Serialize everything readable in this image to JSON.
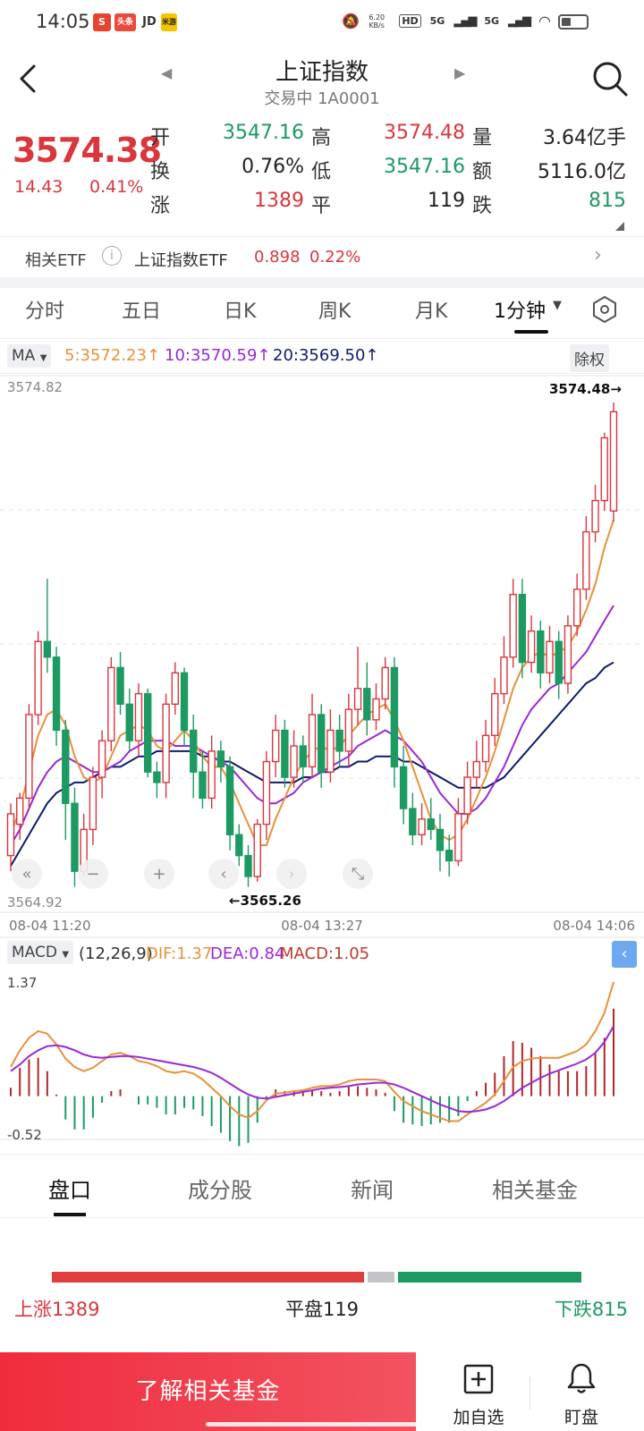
{
  "status_bar": {
    "time": "14:05",
    "app_icons": [
      "S",
      "头条",
      "JD",
      "米游"
    ],
    "net_speed": "6.20 KB/s",
    "signal_labels": [
      "HD",
      "5G",
      "5G"
    ]
  },
  "header": {
    "title": "上证指数",
    "subtitle": "交易中 1A0001"
  },
  "quote": {
    "price": "3574.38",
    "change": "14.43",
    "change_pct": "0.41%",
    "stats": [
      {
        "label": "开",
        "value": "3547.16",
        "tone": "green"
      },
      {
        "label": "高",
        "value": "3574.48",
        "tone": "red"
      },
      {
        "label": "量",
        "value": "3.64亿手",
        "tone": "dark"
      },
      {
        "label": "换",
        "value": "0.76%",
        "tone": "dark"
      },
      {
        "label": "低",
        "value": "3547.16",
        "tone": "green"
      },
      {
        "label": "额",
        "value": "5116.0亿",
        "tone": "dark"
      },
      {
        "label": "涨",
        "value": "1389",
        "tone": "red"
      },
      {
        "label": "平",
        "value": "119",
        "tone": "dark"
      },
      {
        "label": "跌",
        "value": "815",
        "tone": "green"
      }
    ]
  },
  "etf": {
    "label": "相关ETF",
    "name": "上证指数ETF",
    "price": "0.898",
    "pct": "0.22%"
  },
  "period_tabs": [
    "分时",
    "五日",
    "日K",
    "周K",
    "月K",
    "1分钟"
  ],
  "active_period": "1分钟",
  "ma": {
    "selector": "MA",
    "ma5": "5:3572.23",
    "ma10": "10:3570.59",
    "ma20": "20:3569.50",
    "adjust": "除权",
    "colors": {
      "ma5": "#e8913a",
      "ma10": "#9b27d6",
      "ma20": "#0e1a6e"
    }
  },
  "chart_data": {
    "type": "candlestick",
    "y_top_label": "3574.82",
    "y_bottom_label": "3564.92",
    "high_marker": "3574.48→",
    "low_marker": "←3565.26",
    "ylim": [
      3564.92,
      3574.82
    ],
    "x_ticks": [
      "08-04 11:20",
      "08-04 13:27",
      "08-04 14:06"
    ],
    "candles": [
      [
        3565.8,
        3566.6,
        3565.5,
        3566.8
      ],
      [
        3566.4,
        3566.9,
        3566.1,
        3567.0
      ],
      [
        3566.9,
        3568.5,
        3566.7,
        3568.7
      ],
      [
        3568.5,
        3569.9,
        3568.3,
        3570.1
      ],
      [
        3569.9,
        3569.6,
        3569.3,
        3571.1
      ],
      [
        3569.6,
        3568.2,
        3567.9,
        3569.8
      ],
      [
        3568.2,
        3566.8,
        3566.1,
        3568.4
      ],
      [
        3566.8,
        3565.5,
        3565.2,
        3567.1
      ],
      [
        3565.5,
        3566.3,
        3565.4,
        3566.6
      ],
      [
        3566.3,
        3567.3,
        3566.0,
        3567.5
      ],
      [
        3567.3,
        3568.0,
        3566.9,
        3568.2
      ],
      [
        3568.0,
        3569.4,
        3567.8,
        3569.6
      ],
      [
        3569.4,
        3568.7,
        3568.5,
        3569.7
      ],
      [
        3568.7,
        3568.0,
        3567.8,
        3569.0
      ],
      [
        3568.0,
        3568.9,
        3567.7,
        3569.1
      ],
      [
        3568.9,
        3567.4,
        3567.3,
        3569.0
      ],
      [
        3567.4,
        3567.2,
        3566.9,
        3567.6
      ],
      [
        3567.2,
        3568.7,
        3566.9,
        3568.9
      ],
      [
        3568.7,
        3569.3,
        3568.5,
        3569.5
      ],
      [
        3569.3,
        3568.2,
        3567.9,
        3569.4
      ],
      [
        3568.2,
        3567.4,
        3566.9,
        3568.5
      ],
      [
        3567.4,
        3566.9,
        3566.7,
        3567.8
      ],
      [
        3566.9,
        3567.8,
        3566.7,
        3568.1
      ],
      [
        3567.8,
        3567.5,
        3567.2,
        3568.0
      ],
      [
        3567.5,
        3566.2,
        3565.9,
        3567.7
      ],
      [
        3566.2,
        3565.8,
        3565.6,
        3566.4
      ],
      [
        3565.8,
        3565.4,
        3565.2,
        3566.0
      ],
      [
        3565.4,
        3566.4,
        3565.3,
        3566.5
      ],
      [
        3566.4,
        3567.6,
        3566.1,
        3567.8
      ],
      [
        3567.6,
        3568.2,
        3567.3,
        3568.5
      ],
      [
        3568.2,
        3567.3,
        3567.1,
        3568.4
      ],
      [
        3567.3,
        3567.9,
        3567.1,
        3568.2
      ],
      [
        3567.9,
        3567.5,
        3567.2,
        3568.1
      ],
      [
        3567.5,
        3568.5,
        3567.3,
        3568.9
      ],
      [
        3568.5,
        3567.4,
        3567.1,
        3568.7
      ],
      [
        3567.4,
        3568.2,
        3567.2,
        3568.6
      ],
      [
        3568.2,
        3567.8,
        3567.5,
        3568.5
      ],
      [
        3567.8,
        3568.6,
        3567.5,
        3568.9
      ],
      [
        3568.6,
        3569.0,
        3568.3,
        3569.8
      ],
      [
        3569.0,
        3568.4,
        3568.1,
        3569.5
      ],
      [
        3568.4,
        3568.8,
        3568.2,
        3569.1
      ],
      [
        3568.8,
        3569.4,
        3568.6,
        3569.6
      ],
      [
        3569.4,
        3567.5,
        3567.1,
        3569.6
      ],
      [
        3567.5,
        3566.7,
        3566.4,
        3567.9
      ],
      [
        3566.7,
        3566.2,
        3566.0,
        3567.0
      ],
      [
        3566.2,
        3566.5,
        3566.0,
        3566.8
      ],
      [
        3566.5,
        3566.3,
        3566.1,
        3566.9
      ],
      [
        3566.3,
        3565.9,
        3565.5,
        3566.6
      ],
      [
        3565.9,
        3565.7,
        3565.4,
        3566.2
      ],
      [
        3565.7,
        3566.6,
        3565.6,
        3566.9
      ],
      [
        3566.6,
        3567.3,
        3566.4,
        3567.6
      ],
      [
        3567.3,
        3567.6,
        3567.1,
        3568.0
      ],
      [
        3567.6,
        3568.1,
        3567.4,
        3568.4
      ],
      [
        3568.1,
        3568.9,
        3567.9,
        3569.2
      ],
      [
        3568.9,
        3569.6,
        3568.7,
        3570.0
      ],
      [
        3569.6,
        3570.8,
        3569.4,
        3571.1
      ],
      [
        3570.8,
        3569.5,
        3569.2,
        3571.1
      ],
      [
        3569.5,
        3570.1,
        3569.3,
        3570.4
      ],
      [
        3570.1,
        3569.3,
        3569.0,
        3570.3
      ],
      [
        3569.3,
        3569.9,
        3569.1,
        3570.2
      ],
      [
        3569.9,
        3569.1,
        3568.8,
        3570.1
      ],
      [
        3569.1,
        3570.2,
        3568.9,
        3570.4
      ],
      [
        3570.2,
        3570.9,
        3570.0,
        3571.2
      ],
      [
        3570.9,
        3572.0,
        3570.7,
        3572.3
      ],
      [
        3572.0,
        3572.6,
        3571.8,
        3572.9
      ],
      [
        3572.6,
        3573.8,
        3572.4,
        3573.9
      ],
      [
        3572.4,
        3574.3,
        3572.2,
        3574.48
      ]
    ],
    "ma5": [
      3566.2,
      3566.7,
      3567.4,
      3568.1,
      3568.5,
      3568.6,
      3568.3,
      3567.7,
      3567.3,
      3567.2,
      3567.3,
      3567.7,
      3568.1,
      3568.2,
      3568.3,
      3568.2,
      3567.9,
      3567.8,
      3568.0,
      3568.2,
      3568.0,
      3567.7,
      3567.5,
      3567.5,
      3567.2,
      3566.8,
      3566.4,
      3566.0,
      3566.0,
      3566.5,
      3566.9,
      3567.3,
      3567.6,
      3567.8,
      3567.9,
      3567.8,
      3567.9,
      3568.1,
      3568.3,
      3568.5,
      3568.6,
      3568.7,
      3568.4,
      3568.0,
      3567.5,
      3567.0,
      3566.5,
      3566.2,
      3566.1,
      3566.2,
      3566.5,
      3566.9,
      3567.3,
      3567.8,
      3568.4,
      3569.0,
      3569.4,
      3569.6,
      3569.7,
      3569.6,
      3569.7,
      3569.8,
      3570.1,
      3570.5,
      3571.0,
      3571.7,
      3572.23
    ],
    "ma10": [
      3566.0,
      3566.3,
      3566.7,
      3567.1,
      3567.4,
      3567.6,
      3567.7,
      3567.6,
      3567.5,
      3567.4,
      3567.4,
      3567.5,
      3567.6,
      3567.8,
      3567.9,
      3568.0,
      3568.0,
      3568.0,
      3567.9,
      3567.9,
      3567.9,
      3567.8,
      3567.7,
      3567.6,
      3567.5,
      3567.3,
      3567.1,
      3566.9,
      3566.8,
      3566.8,
      3566.9,
      3567.0,
      3567.2,
      3567.3,
      3567.4,
      3567.5,
      3567.6,
      3567.7,
      3567.9,
      3568.0,
      3568.1,
      3568.2,
      3568.1,
      3568.0,
      3567.8,
      3567.6,
      3567.3,
      3567.0,
      3566.8,
      3566.6,
      3566.6,
      3566.7,
      3566.9,
      3567.2,
      3567.5,
      3567.9,
      3568.3,
      3568.6,
      3568.8,
      3569.0,
      3569.1,
      3569.3,
      3569.5,
      3569.7,
      3570.0,
      3570.3,
      3570.59
    ],
    "ma20": [
      3565.6,
      3565.9,
      3566.2,
      3566.5,
      3566.8,
      3567.0,
      3567.1,
      3567.2,
      3567.2,
      3567.3,
      3567.4,
      3567.5,
      3567.5,
      3567.6,
      3567.7,
      3567.7,
      3567.8,
      3567.8,
      3567.8,
      3567.8,
      3567.8,
      3567.7,
      3567.7,
      3567.6,
      3567.6,
      3567.5,
      3567.4,
      3567.3,
      3567.2,
      3567.2,
      3567.2,
      3567.2,
      3567.3,
      3567.3,
      3567.4,
      3567.4,
      3567.5,
      3567.5,
      3567.6,
      3567.6,
      3567.7,
      3567.7,
      3567.7,
      3567.6,
      3567.6,
      3567.5,
      3567.4,
      3567.3,
      3567.2,
      3567.1,
      3567.1,
      3567.1,
      3567.1,
      3567.2,
      3567.3,
      3567.5,
      3567.7,
      3567.9,
      3568.1,
      3568.3,
      3568.5,
      3568.7,
      3568.9,
      3569.1,
      3569.2,
      3569.4,
      3569.5
    ]
  },
  "macd": {
    "selector": "MACD",
    "params": "(12,26,9)",
    "dif": "DIF:1.37",
    "dea": "DEA:0.84",
    "macd_val": "MACD:1.05",
    "y_top_label": "1.37",
    "y_bottom_label": "-0.52",
    "ylim": [
      -0.52,
      1.37
    ],
    "dif_values": [
      0.35,
      0.55,
      0.7,
      0.78,
      0.75,
      0.62,
      0.45,
      0.35,
      0.3,
      0.34,
      0.42,
      0.5,
      0.52,
      0.48,
      0.42,
      0.4,
      0.36,
      0.3,
      0.28,
      0.3,
      0.27,
      0.2,
      0.1,
      0.0,
      -0.12,
      -0.22,
      -0.26,
      -0.18,
      -0.05,
      0.03,
      0.04,
      0.06,
      0.07,
      0.1,
      0.12,
      0.12,
      0.14,
      0.18,
      0.2,
      0.2,
      0.2,
      0.18,
      0.05,
      -0.06,
      -0.12,
      -0.18,
      -0.22,
      -0.26,
      -0.3,
      -0.3,
      -0.22,
      -0.15,
      -0.08,
      0.02,
      0.18,
      0.35,
      0.42,
      0.45,
      0.46,
      0.46,
      0.46,
      0.5,
      0.54,
      0.62,
      0.78,
      1.0,
      1.37
    ],
    "dea_values": [
      0.3,
      0.38,
      0.48,
      0.55,
      0.6,
      0.61,
      0.59,
      0.55,
      0.5,
      0.47,
      0.46,
      0.47,
      0.48,
      0.48,
      0.47,
      0.45,
      0.43,
      0.41,
      0.39,
      0.37,
      0.35,
      0.32,
      0.28,
      0.22,
      0.15,
      0.08,
      0.02,
      -0.02,
      -0.03,
      -0.01,
      0.01,
      0.03,
      0.05,
      0.07,
      0.09,
      0.1,
      0.11,
      0.12,
      0.14,
      0.15,
      0.16,
      0.16,
      0.14,
      0.1,
      0.05,
      0.0,
      -0.05,
      -0.1,
      -0.14,
      -0.18,
      -0.19,
      -0.18,
      -0.16,
      -0.12,
      -0.06,
      0.02,
      0.1,
      0.16,
      0.22,
      0.27,
      0.31,
      0.35,
      0.39,
      0.44,
      0.52,
      0.65,
      0.84
    ],
    "hist_values": [
      0.1,
      0.34,
      0.44,
      0.46,
      0.3,
      0.02,
      -0.28,
      -0.4,
      -0.4,
      -0.26,
      -0.08,
      0.06,
      0.08,
      0.0,
      -0.1,
      -0.1,
      -0.14,
      -0.22,
      -0.22,
      -0.14,
      -0.16,
      -0.24,
      -0.36,
      -0.44,
      -0.54,
      -0.6,
      -0.56,
      -0.32,
      -0.04,
      0.08,
      0.06,
      0.06,
      0.04,
      0.06,
      0.06,
      0.04,
      0.06,
      0.12,
      0.12,
      0.1,
      0.08,
      0.04,
      -0.18,
      -0.32,
      -0.34,
      -0.36,
      -0.34,
      -0.32,
      -0.32,
      -0.24,
      -0.06,
      0.06,
      0.16,
      0.28,
      0.48,
      0.66,
      0.64,
      0.58,
      0.48,
      0.38,
      0.3,
      0.3,
      0.3,
      0.36,
      0.52,
      0.7,
      1.05
    ]
  },
  "bottom_tabs": [
    "盘口",
    "成分股",
    "新闻",
    "相关基金"
  ],
  "active_bottom_tab": "盘口",
  "breadth": {
    "up": "上涨1389",
    "flat": "平盘119",
    "down": "下跌815",
    "up_count": 1389,
    "flat_count": 119,
    "down_count": 815
  },
  "actions": {
    "fund_button": "了解相关基金",
    "watch": "加自选",
    "alert": "盯盘"
  }
}
